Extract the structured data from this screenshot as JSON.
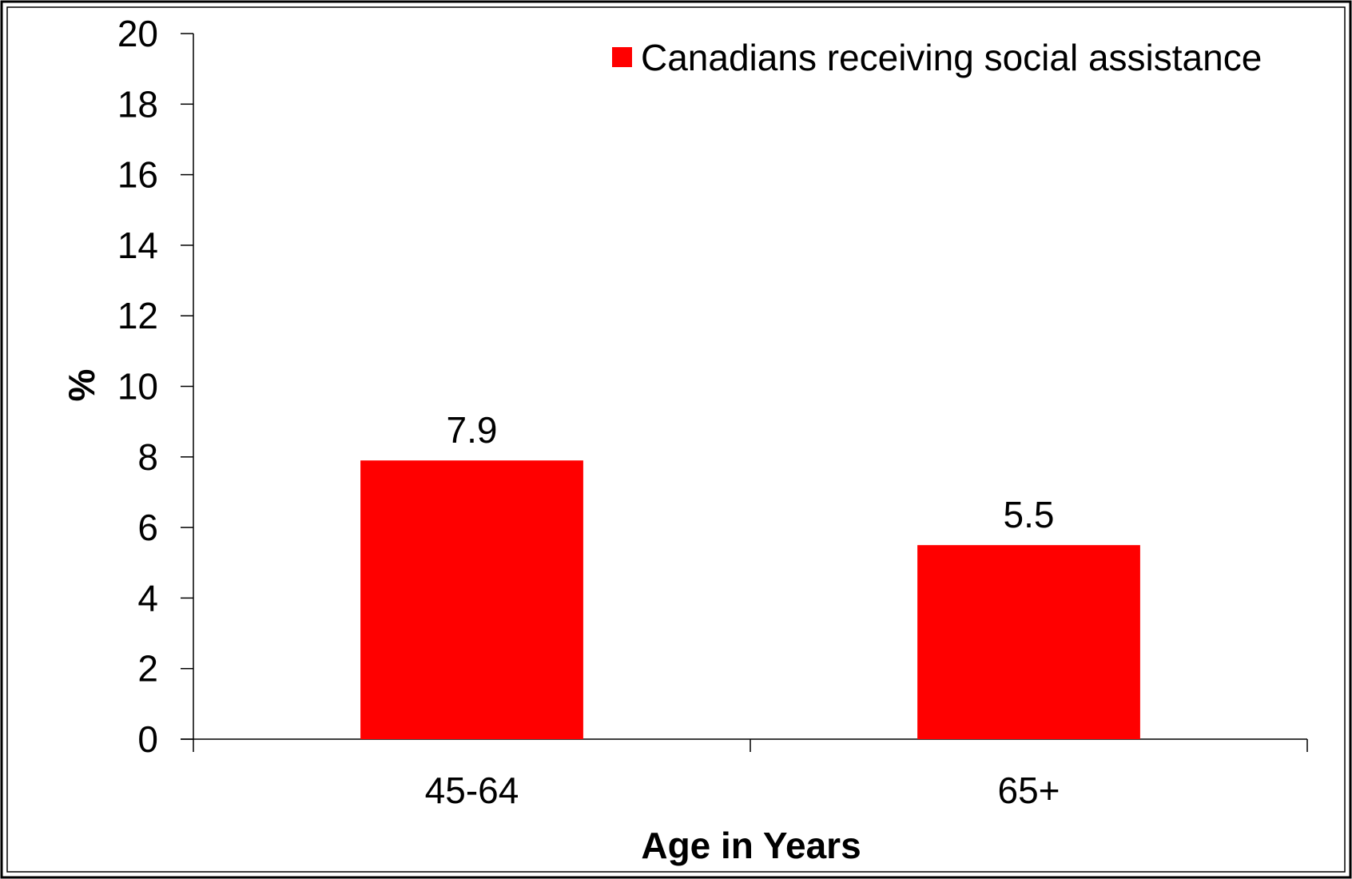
{
  "chart_data": {
    "type": "bar",
    "categories": [
      "45-64",
      "65+"
    ],
    "series": [
      {
        "name": "Canadians receiving social assistance",
        "values": [
          7.9,
          5.5
        ],
        "color": "#ff0000"
      }
    ],
    "data_labels": [
      "7.9",
      "5.5"
    ],
    "xlabel": "Age in Years",
    "ylabel": "%",
    "ylim": [
      0,
      20
    ],
    "yticks": [
      "0",
      "2",
      "4",
      "6",
      "8",
      "10",
      "12",
      "14",
      "16",
      "18",
      "20"
    ],
    "grid": false,
    "legend_position": "top-right"
  }
}
